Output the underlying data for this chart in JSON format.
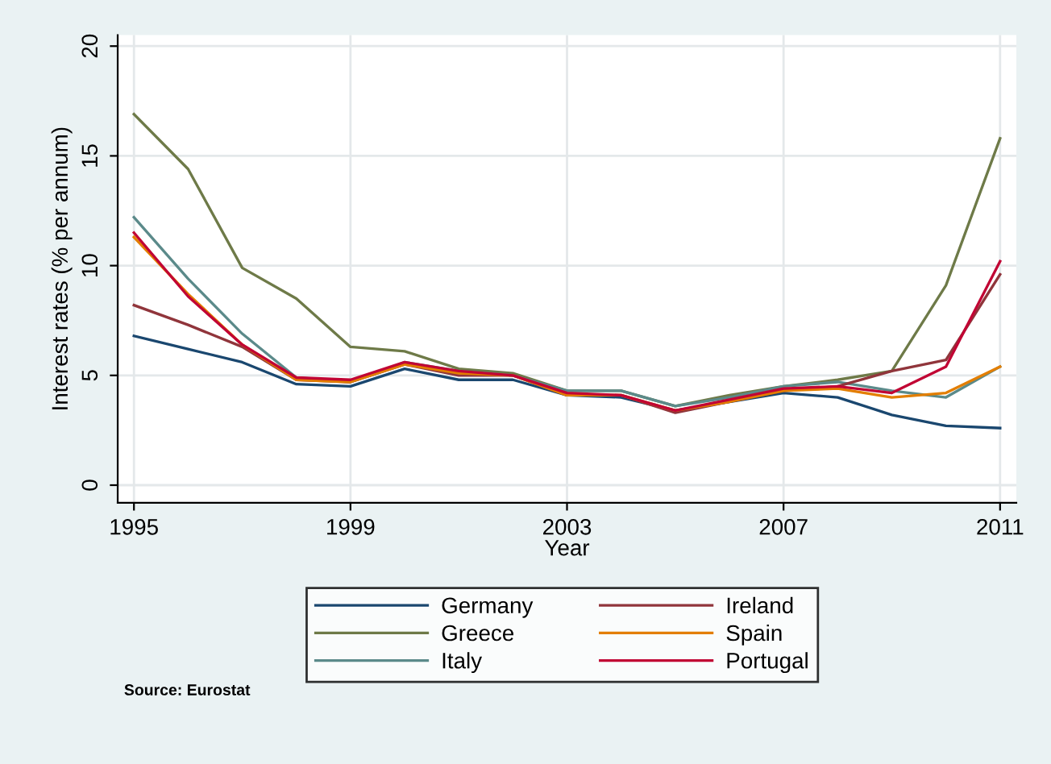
{
  "chart_data": {
    "type": "line",
    "xlabel": "Year",
    "ylabel": "Interest rates (% per annum)",
    "x": [
      1995,
      1996,
      1997,
      1998,
      1999,
      2000,
      2001,
      2002,
      2003,
      2004,
      2005,
      2006,
      2007,
      2008,
      2009,
      2010,
      2011
    ],
    "series": [
      {
        "name": "Germany",
        "color": "#1a476f",
        "values": [
          6.8,
          6.2,
          5.6,
          4.6,
          4.5,
          5.3,
          4.8,
          4.8,
          4.1,
          4.0,
          3.4,
          3.8,
          4.2,
          4.0,
          3.2,
          2.7,
          2.6
        ]
      },
      {
        "name": "Greece",
        "color": "#6e7a48",
        "values": [
          16.9,
          14.4,
          9.9,
          8.5,
          6.3,
          6.1,
          5.3,
          5.1,
          4.3,
          4.3,
          3.6,
          4.1,
          4.5,
          4.8,
          5.2,
          9.1,
          15.8
        ]
      },
      {
        "name": "Italy",
        "color": "#5b8a8a",
        "values": [
          12.2,
          9.4,
          6.9,
          4.9,
          4.7,
          5.6,
          5.2,
          5.0,
          4.3,
          4.3,
          3.6,
          4.0,
          4.5,
          4.7,
          4.3,
          4.0,
          5.4
        ]
      },
      {
        "name": "Ireland",
        "color": "#90353b",
        "values": [
          8.2,
          7.3,
          6.3,
          4.8,
          4.7,
          5.5,
          5.0,
          5.0,
          4.1,
          4.1,
          3.3,
          3.8,
          4.3,
          4.5,
          5.2,
          5.7,
          9.6
        ]
      },
      {
        "name": "Spain",
        "color": "#e37e00",
        "values": [
          11.3,
          8.7,
          6.4,
          4.8,
          4.7,
          5.5,
          5.1,
          5.0,
          4.1,
          4.1,
          3.4,
          3.8,
          4.3,
          4.4,
          4.0,
          4.2,
          5.4
        ]
      },
      {
        "name": "Portugal",
        "color": "#c10534",
        "values": [
          11.5,
          8.6,
          6.4,
          4.9,
          4.8,
          5.6,
          5.2,
          5.0,
          4.2,
          4.1,
          3.4,
          3.9,
          4.4,
          4.5,
          4.2,
          5.4,
          10.2
        ]
      }
    ],
    "xlim": [
      1994.7,
      2011.3
    ],
    "ylim": [
      -0.8,
      20.5
    ],
    "xticks": [
      1995,
      1999,
      2003,
      2007,
      2011
    ],
    "yticks": [
      0,
      5,
      10,
      15,
      20
    ],
    "grid": true,
    "legend": "bottom",
    "line_style": "solid",
    "marker": "none",
    "annotations": [
      "Source: Eurostat"
    ]
  }
}
